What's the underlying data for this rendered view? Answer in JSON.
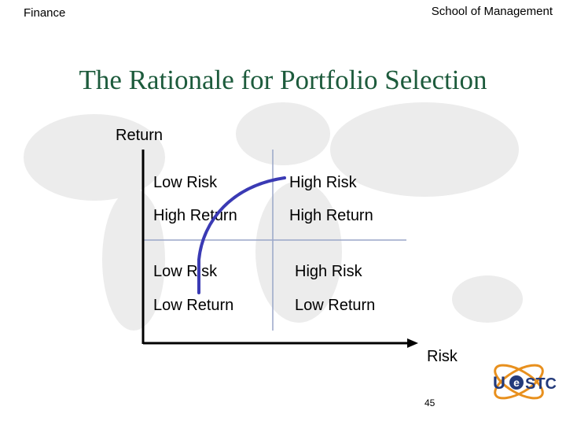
{
  "header": {
    "left": "Finance",
    "right": "School of Management"
  },
  "title": "The Rationale for Portfolio Selection",
  "axes": {
    "y_label": "Return",
    "x_label": "Risk"
  },
  "quadrants": [
    {
      "risk": "Low Risk",
      "return": "High Return"
    },
    {
      "risk": "High Risk",
      "return": "High Return"
    },
    {
      "risk": "Low Risk",
      "return": "Low Return"
    },
    {
      "risk": "High Risk",
      "return": "Low Return"
    }
  ],
  "logo": {
    "parts": [
      "U",
      "e",
      "STC"
    ]
  },
  "page_number": "45"
}
